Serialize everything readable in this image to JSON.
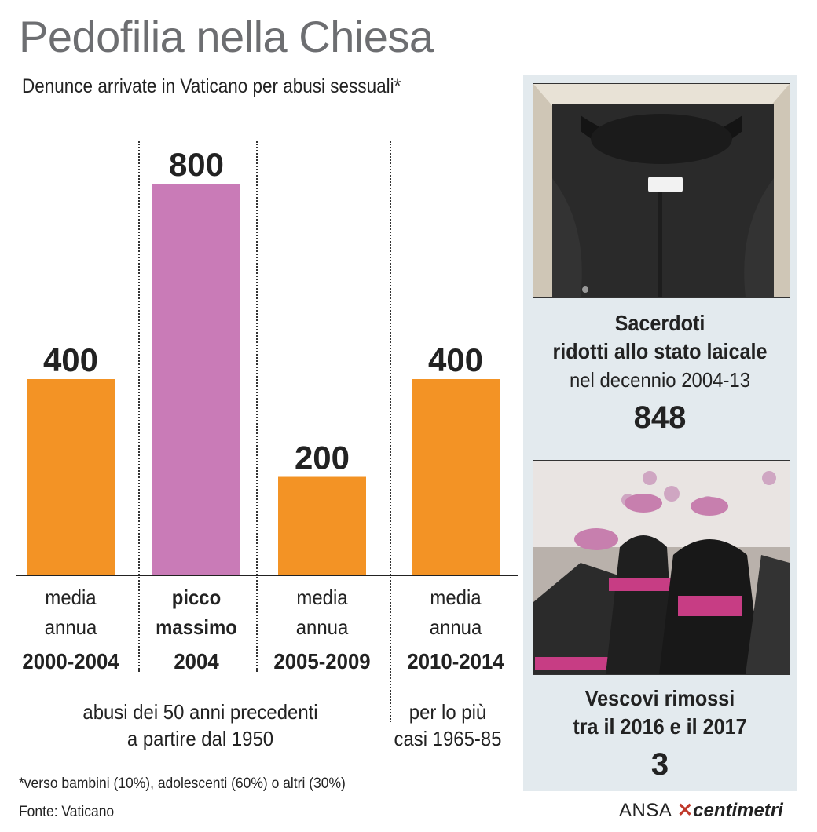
{
  "title": "Pedofilia nella Chiesa",
  "subtitle": "Denunce arrivate in Vaticano per abusi sessuali*",
  "chart_data": {
    "type": "bar",
    "categories": [
      "media annua 2000-2004",
      "picco massimo 2004",
      "media annua 2005-2009",
      "media annua 2010-2014"
    ],
    "values": [
      400,
      800,
      200,
      400
    ],
    "colors": [
      "#f39325",
      "#c97bb7",
      "#f39325",
      "#f39325"
    ],
    "ylim": [
      0,
      800
    ],
    "category_lines": [
      {
        "line1": "media",
        "line2": "annua",
        "period": "2000-2004",
        "emphasis": false
      },
      {
        "line1": "picco",
        "line2": "massimo",
        "period": "2004",
        "emphasis": true
      },
      {
        "line1": "media",
        "line2": "annua",
        "period": "2005-2009",
        "emphasis": false
      },
      {
        "line1": "media",
        "line2": "annua",
        "period": "2010-2014",
        "emphasis": false
      }
    ]
  },
  "notes": {
    "left": [
      "abusi dei 50 anni precedenti",
      "a partire dal 1950"
    ],
    "right": [
      "per lo più",
      "casi 1965-85"
    ]
  },
  "footnote": "*verso bambini (10%), adolescenti (60%) o altri (30%)",
  "source": "Fonte: Vaticano",
  "logo": {
    "ansa": "ANSA",
    "brand": "centimetri"
  },
  "side_panel": {
    "priests": {
      "line1": "Sacerdoti",
      "line2": "ridotti allo stato laicale",
      "line3": "nel decennio 2004-13",
      "value": "848"
    },
    "bishops": {
      "line1": "Vescovi rimossi",
      "line2": "tra il 2016 e il 2017",
      "value": "3"
    }
  },
  "colors": {
    "orange": "#f39325",
    "purple": "#c97bb7",
    "panel_bg": "#e3eaee",
    "title_gray": "#6d6e71"
  }
}
